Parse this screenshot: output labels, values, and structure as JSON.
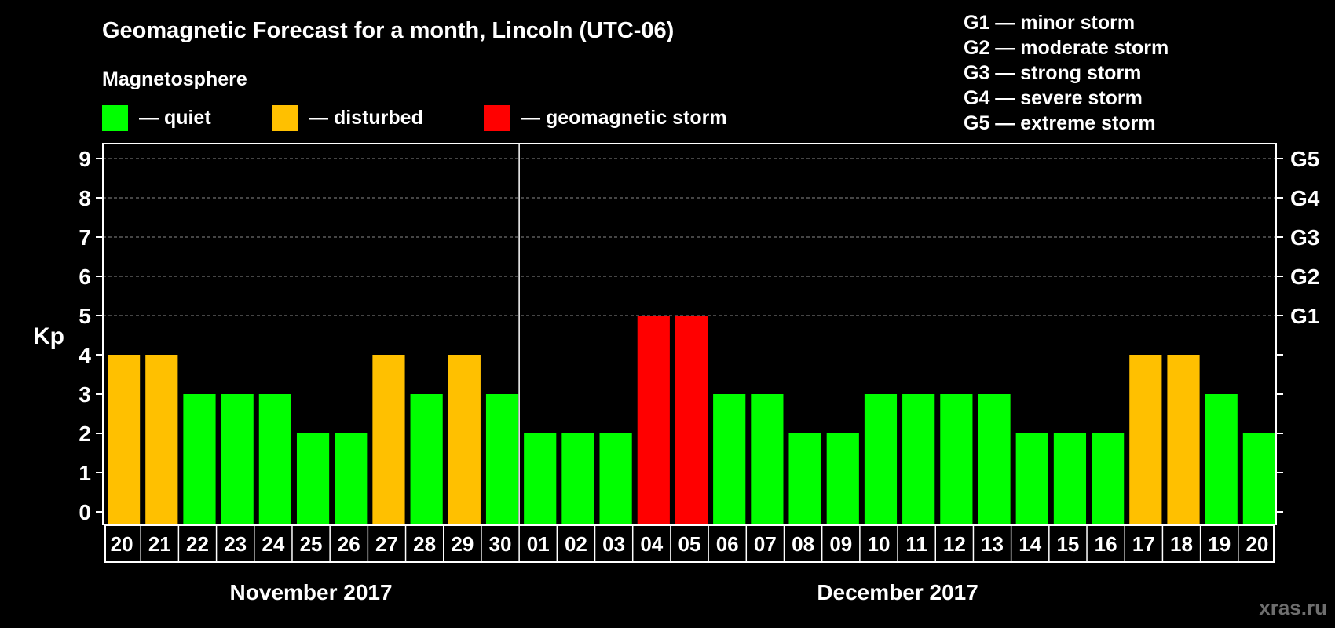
{
  "title": "Geomagnetic Forecast for a month, Lincoln (UTC-06)",
  "legend": {
    "heading": "Magnetosphere",
    "items": [
      {
        "label": "— quiet",
        "color": "#00ff00"
      },
      {
        "label": "— disturbed",
        "color": "#ffc000"
      },
      {
        "label": "— geomagnetic storm",
        "color": "#ff0000"
      }
    ]
  },
  "storm_scale": [
    "G1 — minor storm",
    "G2 — moderate storm",
    "G3 — strong storm",
    "G4 — severe storm",
    "G5 — extreme storm"
  ],
  "watermark": "xras.ru",
  "chart_data": {
    "type": "bar",
    "ylabel": "Kp",
    "ylim": [
      0,
      9
    ],
    "yticks": [
      "0",
      "1",
      "2",
      "3",
      "4",
      "5",
      "6",
      "7",
      "8",
      "9"
    ],
    "right_ticks": [
      {
        "value": 5,
        "label": "G1"
      },
      {
        "value": 6,
        "label": "G2"
      },
      {
        "value": 7,
        "label": "G3"
      },
      {
        "value": 8,
        "label": "G4"
      },
      {
        "value": 9,
        "label": "G5"
      }
    ],
    "grid": "dashed horizontal at 5-9",
    "categories": [
      "20",
      "21",
      "22",
      "23",
      "24",
      "25",
      "26",
      "27",
      "28",
      "29",
      "30",
      "01",
      "02",
      "03",
      "04",
      "05",
      "06",
      "07",
      "08",
      "09",
      "10",
      "11",
      "12",
      "13",
      "14",
      "15",
      "16",
      "17",
      "18",
      "19",
      "20"
    ],
    "values": [
      4,
      4,
      3,
      3,
      3,
      2,
      2,
      4,
      3,
      4,
      3,
      2,
      2,
      2,
      5,
      5,
      3,
      3,
      2,
      2,
      3,
      3,
      3,
      3,
      2,
      2,
      2,
      4,
      4,
      3,
      2
    ],
    "months": [
      {
        "label": "November 2017",
        "start": 0,
        "end": 10
      },
      {
        "label": "December 2017",
        "start": 11,
        "end": 30
      }
    ],
    "colors": {
      "quiet": "#00ff00",
      "disturbed": "#ffc000",
      "storm": "#ff0000"
    }
  }
}
